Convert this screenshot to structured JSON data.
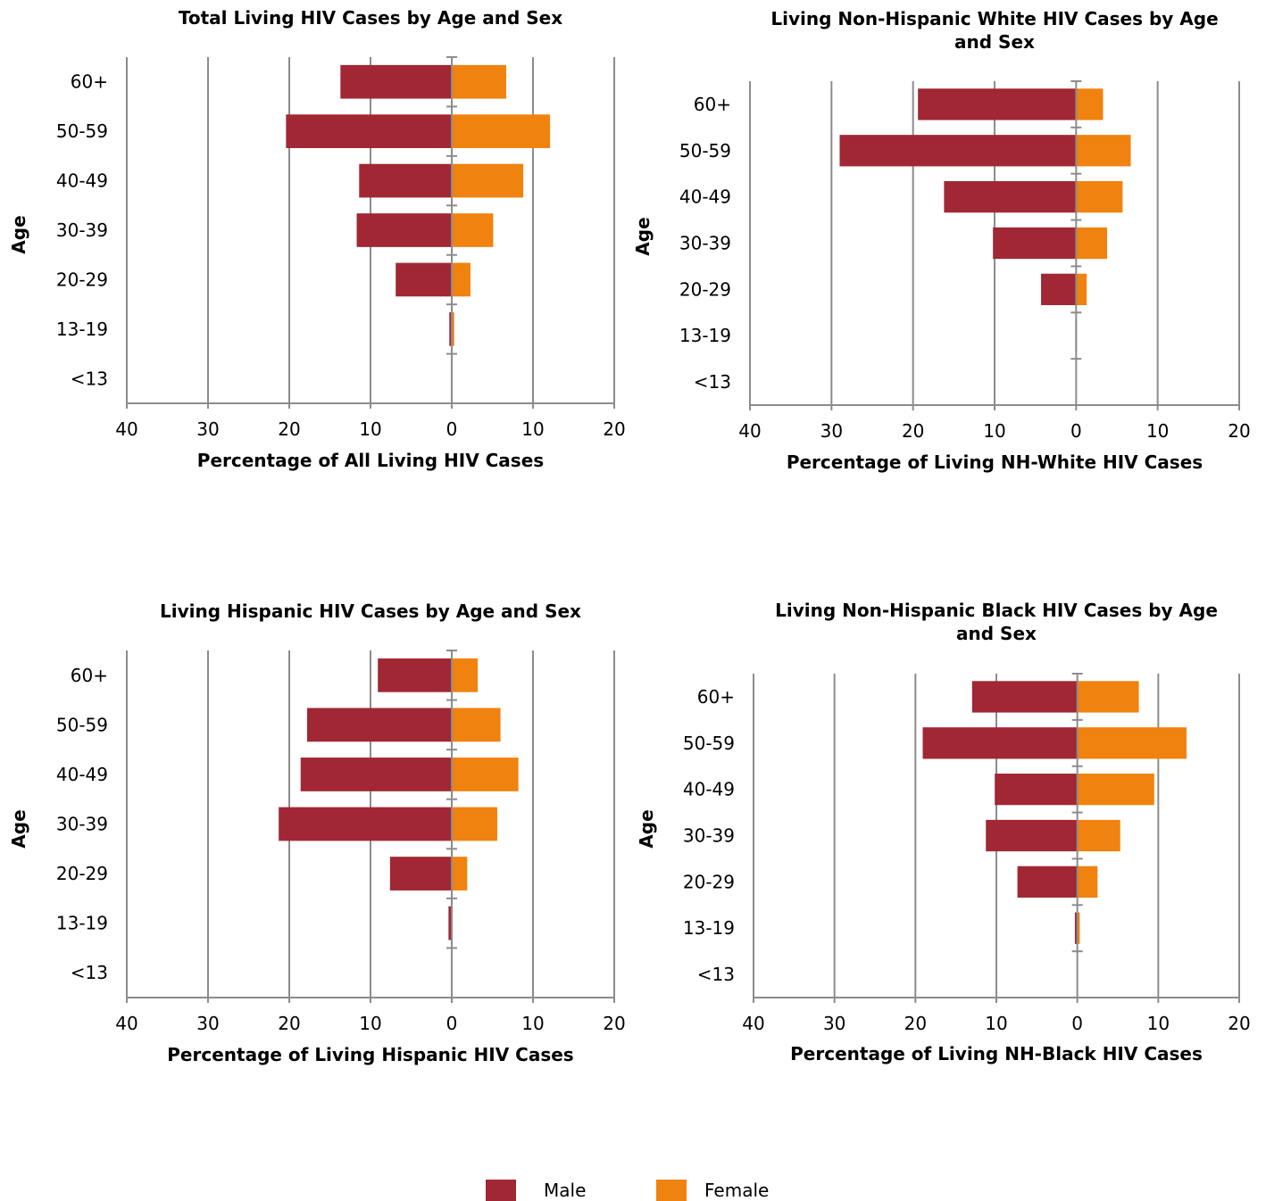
{
  "colors": {
    "male": "#A12735",
    "female": "#F0820F",
    "grid": "#8C8C8C"
  },
  "legend": {
    "male": "Male",
    "female": "Female"
  },
  "chart_data": [
    {
      "type": "bar",
      "orientation": "horizontal-population-pyramid",
      "title": [
        "Total Living HIV Cases by Age and Sex"
      ],
      "xlabel": "Percentage of All Living HIV Cases",
      "ylabel": "Age",
      "categories": [
        "60+",
        "50-59",
        "40-49",
        "30-39",
        "20-29",
        "13-19",
        "<13"
      ],
      "x_ticks": [
        "40",
        "30",
        "20",
        "10",
        "0",
        "10",
        "20"
      ],
      "xlim": [
        -40,
        20
      ],
      "grid": true,
      "series": [
        {
          "name": "Male",
          "values": [
            13.7,
            20.4,
            11.4,
            11.7,
            6.9,
            0.3,
            0
          ]
        },
        {
          "name": "Female",
          "values": [
            6.7,
            12.1,
            8.8,
            5.1,
            2.3,
            0.3,
            0
          ]
        }
      ]
    },
    {
      "type": "bar",
      "orientation": "horizontal-population-pyramid",
      "title": [
        "Living Non-Hispanic White HIV Cases by Age",
        "and Sex"
      ],
      "xlabel": "Percentage of Living NH-White HIV Cases",
      "ylabel": "Age",
      "categories": [
        "60+",
        "50-59",
        "40-49",
        "30-39",
        "20-29",
        "13-19",
        "<13"
      ],
      "x_ticks": [
        "40",
        "30",
        "20",
        "10",
        "0",
        "10",
        "20"
      ],
      "xlim": [
        -40,
        20
      ],
      "grid": true,
      "series": [
        {
          "name": "Male",
          "values": [
            19.4,
            29.0,
            16.2,
            10.2,
            4.3,
            0.1,
            0
          ]
        },
        {
          "name": "Female",
          "values": [
            3.3,
            6.7,
            5.7,
            3.8,
            1.3,
            0.1,
            0
          ]
        }
      ]
    },
    {
      "type": "bar",
      "orientation": "horizontal-population-pyramid",
      "title": [
        "Living Hispanic HIV Cases by Age and Sex"
      ],
      "xlabel": "Percentage of Living Hispanic HIV Cases",
      "ylabel": "Age",
      "categories": [
        "60+",
        "50-59",
        "40-49",
        "30-39",
        "20-29",
        "13-19",
        "<13"
      ],
      "x_ticks": [
        "40",
        "30",
        "20",
        "10",
        "0",
        "10",
        "20"
      ],
      "xlim": [
        -40,
        20
      ],
      "grid": true,
      "series": [
        {
          "name": "Male",
          "values": [
            9.1,
            17.8,
            18.6,
            21.3,
            7.6,
            0.4,
            0
          ]
        },
        {
          "name": "Female",
          "values": [
            3.2,
            6.0,
            8.2,
            5.6,
            1.9,
            0.1,
            0
          ]
        }
      ]
    },
    {
      "type": "bar",
      "orientation": "horizontal-population-pyramid",
      "title": [
        "Living Non-Hispanic Black HIV Cases by Age",
        "and Sex"
      ],
      "xlabel": "Percentage of Living NH-Black HIV Cases",
      "ylabel": "Age",
      "categories": [
        "60+",
        "50-59",
        "40-49",
        "30-39",
        "20-29",
        "13-19",
        "<13"
      ],
      "x_ticks": [
        "40",
        "30",
        "20",
        "10",
        "0",
        "10",
        "20"
      ],
      "xlim": [
        -40,
        20
      ],
      "grid": true,
      "series": [
        {
          "name": "Male",
          "values": [
            13.0,
            19.1,
            10.2,
            11.3,
            7.4,
            0.3,
            0
          ]
        },
        {
          "name": "Female",
          "values": [
            7.6,
            13.5,
            9.5,
            5.3,
            2.5,
            0.3,
            0
          ]
        }
      ]
    }
  ]
}
